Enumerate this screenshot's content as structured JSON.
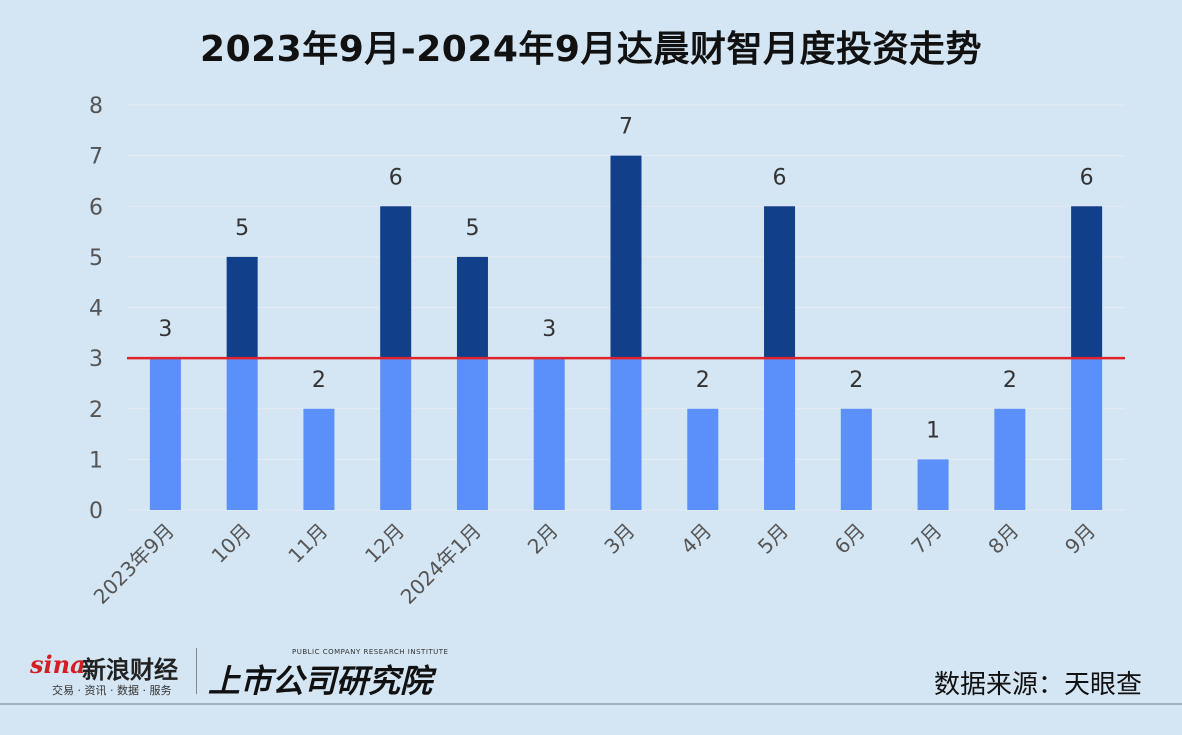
{
  "chart_data": {
    "type": "bar",
    "title": "2023年9月-2024年9月达晨财智月度投资走势",
    "categories": [
      "2023年9月",
      "10月",
      "11月",
      "12月",
      "2024年1月",
      "2月",
      "3月",
      "4月",
      "5月",
      "6月",
      "7月",
      "8月",
      "9月"
    ],
    "values": [
      3,
      5,
      2,
      6,
      5,
      3,
      7,
      2,
      6,
      2,
      1,
      2,
      6
    ],
    "ylim": [
      0,
      8
    ],
    "yticks": [
      "0",
      "1",
      "2",
      "3",
      "4",
      "5",
      "6",
      "7",
      "8"
    ],
    "reference_line": 3,
    "grid": true,
    "colors": {
      "below_reference": "#5b8ff9",
      "above_reference": "#123f8a",
      "reference_line": "#e0242a",
      "grid": "#e3ecf4"
    }
  },
  "footer": {
    "sina_mark": "sina",
    "sina_brand": "新浪财经",
    "sina_sub": "交易 · 资讯 · 数据 · 服务",
    "institute_small": "PUBLIC COMPANY RESEARCH INSTITUTE",
    "institute_name": "上市公司研究院",
    "source": "数据来源：天眼查"
  }
}
